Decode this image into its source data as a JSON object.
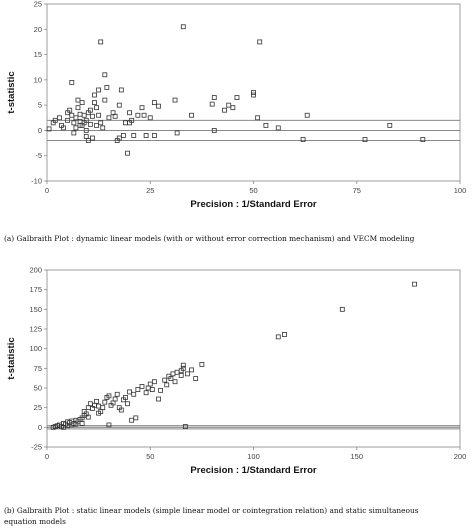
{
  "chart_data": [
    {
      "id": "a",
      "type": "scatter",
      "title": "",
      "xlabel": "Precision : 1/Standard Error",
      "ylabel": "t-statistic",
      "xlim": [
        0,
        100
      ],
      "ylim": [
        -10,
        25
      ],
      "xticks": [
        0,
        25,
        50,
        75,
        100
      ],
      "yticks": [
        -10,
        -5,
        0,
        5,
        10,
        15,
        20,
        25
      ],
      "ref_lines": [
        -2,
        0,
        2
      ],
      "caption": "(a) Galbraith Plot : dynamic linear models (with or without error correction mechanism) and VECM modeling",
      "points": [
        [
          0.5,
          0.3
        ],
        [
          1.5,
          1.5
        ],
        [
          2,
          2
        ],
        [
          3,
          2.5
        ],
        [
          3.5,
          1
        ],
        [
          4,
          0.5
        ],
        [
          5,
          2
        ],
        [
          5,
          3.5
        ],
        [
          5.5,
          4
        ],
        [
          6,
          9.5
        ],
        [
          6,
          3
        ],
        [
          6.5,
          1.5
        ],
        [
          6.5,
          -0.5
        ],
        [
          7,
          0.5
        ],
        [
          7,
          2.5
        ],
        [
          7.5,
          6
        ],
        [
          7.5,
          4.5
        ],
        [
          8,
          1
        ],
        [
          8,
          1.8
        ],
        [
          8,
          3.2
        ],
        [
          8.5,
          1
        ],
        [
          8.5,
          5.5
        ],
        [
          9,
          3
        ],
        [
          9,
          1.5
        ],
        [
          9.5,
          2
        ],
        [
          9.5,
          0
        ],
        [
          9.5,
          -1.2
        ],
        [
          10,
          3.5
        ],
        [
          10,
          -2
        ],
        [
          10.5,
          4
        ],
        [
          10.5,
          1.2
        ],
        [
          11,
          -1.5
        ],
        [
          11,
          2.8
        ],
        [
          11.5,
          7
        ],
        [
          11.5,
          5.5
        ],
        [
          12,
          4.5
        ],
        [
          12,
          1
        ],
        [
          12.5,
          8
        ],
        [
          12.5,
          3
        ],
        [
          13,
          17.5
        ],
        [
          13,
          1.5
        ],
        [
          13.5,
          0.5
        ],
        [
          14,
          11
        ],
        [
          14,
          6
        ],
        [
          14.5,
          8.5
        ],
        [
          15,
          2.5
        ],
        [
          16,
          3.5
        ],
        [
          16.5,
          2.8
        ],
        [
          17,
          -2
        ],
        [
          17.5,
          5
        ],
        [
          17.5,
          -1.5
        ],
        [
          18,
          8
        ],
        [
          18.5,
          -1
        ],
        [
          19,
          1.5
        ],
        [
          19.5,
          -4.5
        ],
        [
          20,
          3.5
        ],
        [
          20,
          1.5
        ],
        [
          20.5,
          2
        ],
        [
          21,
          -1
        ],
        [
          22,
          3
        ],
        [
          23,
          4.5
        ],
        [
          23.5,
          3
        ],
        [
          24,
          -1
        ],
        [
          25,
          2.5
        ],
        [
          26,
          5.5
        ],
        [
          26,
          -1
        ],
        [
          27,
          4.8
        ],
        [
          31,
          6
        ],
        [
          31.5,
          -0.5
        ],
        [
          33,
          20.5
        ],
        [
          35,
          3
        ],
        [
          40,
          5.2
        ],
        [
          40.5,
          6.5
        ],
        [
          40.5,
          0
        ],
        [
          43,
          4
        ],
        [
          44,
          5
        ],
        [
          45,
          4.5
        ],
        [
          46,
          6.5
        ],
        [
          50,
          7
        ],
        [
          50,
          7.5
        ],
        [
          51,
          2.5
        ],
        [
          51.5,
          17.5
        ],
        [
          53,
          1
        ],
        [
          56,
          0.5
        ],
        [
          62,
          -1.8
        ],
        [
          63,
          3
        ],
        [
          77,
          -1.8
        ],
        [
          83,
          1
        ],
        [
          91,
          -1.8
        ]
      ]
    },
    {
      "id": "b",
      "type": "scatter",
      "title": "",
      "xlabel": "Precision : 1/Standard Error",
      "ylabel": "t-statistic",
      "xlim": [
        0,
        200
      ],
      "ylim": [
        -25,
        200
      ],
      "xticks": [
        0,
        50,
        100,
        150,
        200
      ],
      "yticks": [
        -25,
        0,
        25,
        50,
        75,
        100,
        125,
        150,
        175,
        200
      ],
      "ref_lines": [
        -2,
        0,
        2
      ],
      "caption": "(b) Galbraith Plot : static linear models (simple linear model or cointegration relation) and static simultaneous equation models",
      "points": [
        [
          3,
          0
        ],
        [
          4,
          1
        ],
        [
          5,
          2
        ],
        [
          6,
          3
        ],
        [
          7,
          1
        ],
        [
          8,
          5
        ],
        [
          8,
          0
        ],
        [
          9,
          4
        ],
        [
          10,
          7
        ],
        [
          10,
          2
        ],
        [
          11,
          6
        ],
        [
          12,
          8
        ],
        [
          12,
          3
        ],
        [
          13,
          5
        ],
        [
          14,
          4
        ],
        [
          14,
          9
        ],
        [
          15,
          7
        ],
        [
          16,
          10
        ],
        [
          17,
          12
        ],
        [
          17,
          5
        ],
        [
          18,
          15
        ],
        [
          18,
          20
        ],
        [
          19,
          17
        ],
        [
          20,
          25
        ],
        [
          20,
          13
        ],
        [
          21,
          30
        ],
        [
          22,
          24
        ],
        [
          23,
          28
        ],
        [
          24,
          33
        ],
        [
          25,
          18
        ],
        [
          25,
          27
        ],
        [
          26,
          20
        ],
        [
          27,
          25
        ],
        [
          28,
          32
        ],
        [
          29,
          38
        ],
        [
          30,
          40
        ],
        [
          30,
          3
        ],
        [
          31,
          28
        ],
        [
          32,
          31
        ],
        [
          33,
          36
        ],
        [
          34,
          42
        ],
        [
          35,
          25
        ],
        [
          36,
          22
        ],
        [
          37,
          35
        ],
        [
          38,
          38
        ],
        [
          39,
          30
        ],
        [
          40,
          45
        ],
        [
          41,
          9
        ],
        [
          42,
          42
        ],
        [
          43,
          12
        ],
        [
          44,
          48
        ],
        [
          46,
          52
        ],
        [
          48,
          44
        ],
        [
          49,
          50
        ],
        [
          50,
          55
        ],
        [
          51,
          48
        ],
        [
          52,
          58
        ],
        [
          54,
          36
        ],
        [
          55,
          47
        ],
        [
          57,
          60
        ],
        [
          58,
          54
        ],
        [
          59,
          65
        ],
        [
          60,
          62
        ],
        [
          61,
          68
        ],
        [
          62,
          58
        ],
        [
          63,
          70
        ],
        [
          65,
          72
        ],
        [
          65,
          66
        ],
        [
          66,
          75
        ],
        [
          66,
          79
        ],
        [
          67,
          1
        ],
        [
          68,
          68
        ],
        [
          70,
          73
        ],
        [
          72,
          62
        ],
        [
          75,
          80
        ],
        [
          112,
          115
        ],
        [
          115,
          118
        ],
        [
          143,
          150
        ],
        [
          178,
          182
        ]
      ]
    }
  ]
}
